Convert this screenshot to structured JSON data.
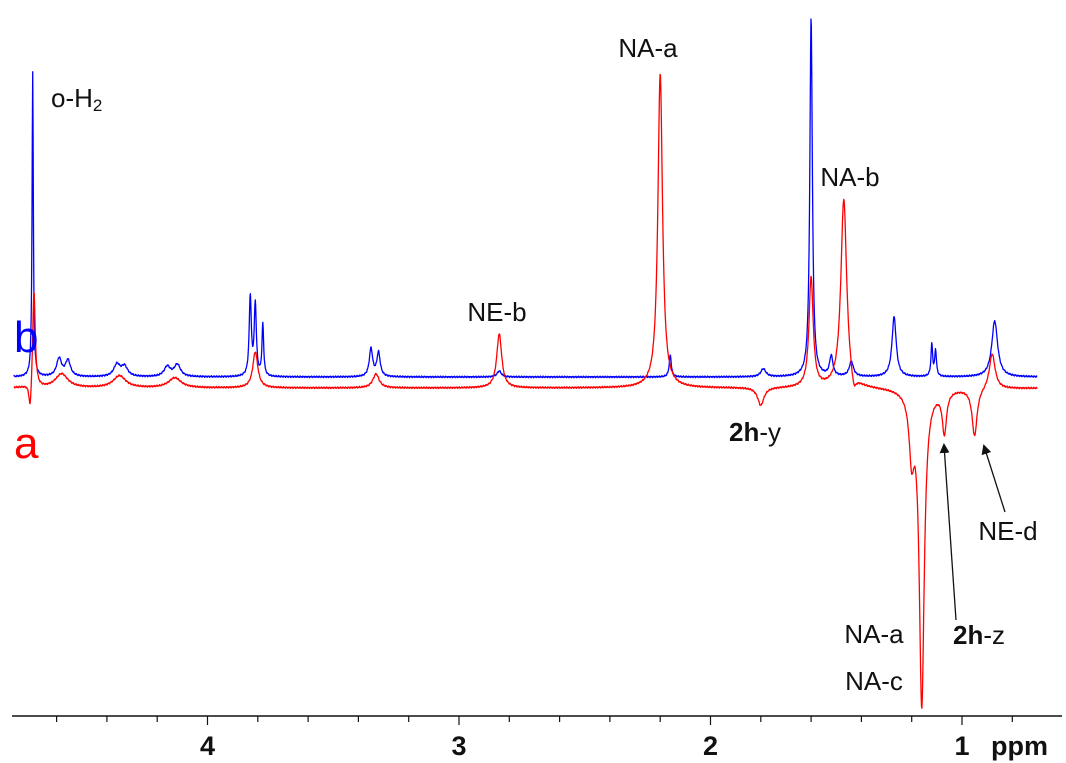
{
  "chart_data": {
    "type": "line",
    "x_axis": {
      "label": "ppm",
      "reversed": true,
      "range": [
        0.7,
        4.77
      ],
      "major_ticks": [
        4,
        3,
        2,
        1
      ],
      "major_tick_labels": [
        "4",
        "3",
        "2",
        "1"
      ],
      "minor_step": 0.2,
      "unit_label": "ppm"
    },
    "y_axis": {
      "shown": false
    },
    "grid": false,
    "series": [
      {
        "name": "b",
        "color": "#0000ff",
        "baseline": 0,
        "peaks": [
          {
            "x": 4.695,
            "h": 305,
            "w": 0.003
          },
          {
            "x": 4.59,
            "h": 18,
            "w": 0.012
          },
          {
            "x": 4.555,
            "h": 16,
            "w": 0.012
          },
          {
            "x": 4.36,
            "h": 12,
            "w": 0.015
          },
          {
            "x": 4.33,
            "h": 10,
            "w": 0.015
          },
          {
            "x": 4.16,
            "h": 10,
            "w": 0.015
          },
          {
            "x": 4.12,
            "h": 12,
            "w": 0.015
          },
          {
            "x": 3.83,
            "h": 80,
            "w": 0.005
          },
          {
            "x": 3.81,
            "h": 72,
            "w": 0.005
          },
          {
            "x": 3.78,
            "h": 52,
            "w": 0.004
          },
          {
            "x": 3.35,
            "h": 28,
            "w": 0.008
          },
          {
            "x": 3.32,
            "h": 24,
            "w": 0.008
          },
          {
            "x": 2.84,
            "h": 6,
            "w": 0.01
          },
          {
            "x": 2.16,
            "h": 22,
            "w": 0.005
          },
          {
            "x": 1.79,
            "h": 8,
            "w": 0.012
          },
          {
            "x": 1.6,
            "h": 360,
            "w": 0.006
          },
          {
            "x": 1.52,
            "h": 20,
            "w": 0.008
          },
          {
            "x": 1.44,
            "h": 15,
            "w": 0.01
          },
          {
            "x": 1.27,
            "h": 60,
            "w": 0.01
          },
          {
            "x": 1.12,
            "h": 32,
            "w": 0.004
          },
          {
            "x": 1.105,
            "h": 26,
            "w": 0.004
          },
          {
            "x": 0.87,
            "h": 56,
            "w": 0.014
          }
        ]
      },
      {
        "name": "a",
        "color": "#ff0000",
        "baseline": 0,
        "peaks": [
          {
            "x": 4.705,
            "h": -30,
            "w": 0.006
          },
          {
            "x": 4.69,
            "h": 100,
            "w": 0.006
          },
          {
            "x": 4.58,
            "h": 14,
            "w": 0.03
          },
          {
            "x": 4.35,
            "h": 12,
            "w": 0.03
          },
          {
            "x": 4.13,
            "h": 10,
            "w": 0.03
          },
          {
            "x": 3.81,
            "h": 36,
            "w": 0.012
          },
          {
            "x": 3.33,
            "h": 14,
            "w": 0.015
          },
          {
            "x": 2.84,
            "h": 54,
            "w": 0.012
          },
          {
            "x": 2.2,
            "h": 315,
            "w": 0.011
          },
          {
            "x": 1.8,
            "h": -18,
            "w": 0.015
          },
          {
            "x": 1.6,
            "h": 110,
            "w": 0.01
          },
          {
            "x": 1.47,
            "h": 190,
            "w": 0.014
          },
          {
            "x": 1.43,
            "h": -16,
            "w": 0.012
          },
          {
            "x": 1.2,
            "h": -60,
            "w": 0.012
          },
          {
            "x": 1.16,
            "h": -315,
            "w": 0.012
          },
          {
            "x": 1.07,
            "h": -42,
            "w": 0.01
          },
          {
            "x": 0.95,
            "h": -48,
            "w": 0.012
          },
          {
            "x": 0.88,
            "h": 36,
            "w": 0.014
          }
        ]
      }
    ],
    "series_labels": [
      {
        "text": "b",
        "color": "#0000ff"
      },
      {
        "text": "a",
        "color": "#ff0000"
      }
    ],
    "annotations": [
      {
        "id": "o-h2",
        "parts": [
          {
            "text": "o-H",
            "bold": false
          },
          {
            "text": "2",
            "sub": true
          }
        ]
      },
      {
        "id": "ne-b",
        "parts": [
          {
            "text": "NE-b",
            "bold": false
          }
        ]
      },
      {
        "id": "na-a-top",
        "parts": [
          {
            "text": "NA-a",
            "bold": false
          }
        ]
      },
      {
        "id": "na-b",
        "parts": [
          {
            "text": "NA-b",
            "bold": false
          }
        ]
      },
      {
        "id": "2h-y",
        "parts": [
          {
            "text": "2h",
            "bold": true
          },
          {
            "text": "-y",
            "bold": false
          }
        ]
      },
      {
        "id": "ne-d",
        "parts": [
          {
            "text": "NE-d",
            "bold": false
          }
        ]
      },
      {
        "id": "na-a-bottom",
        "parts": [
          {
            "text": "NA-a",
            "bold": false
          }
        ]
      },
      {
        "id": "na-c",
        "parts": [
          {
            "text": "NA-c",
            "bold": false
          }
        ]
      },
      {
        "id": "2h-z",
        "parts": [
          {
            "text": "2h",
            "bold": true
          },
          {
            "text": "-z",
            "bold": false
          }
        ]
      }
    ]
  }
}
